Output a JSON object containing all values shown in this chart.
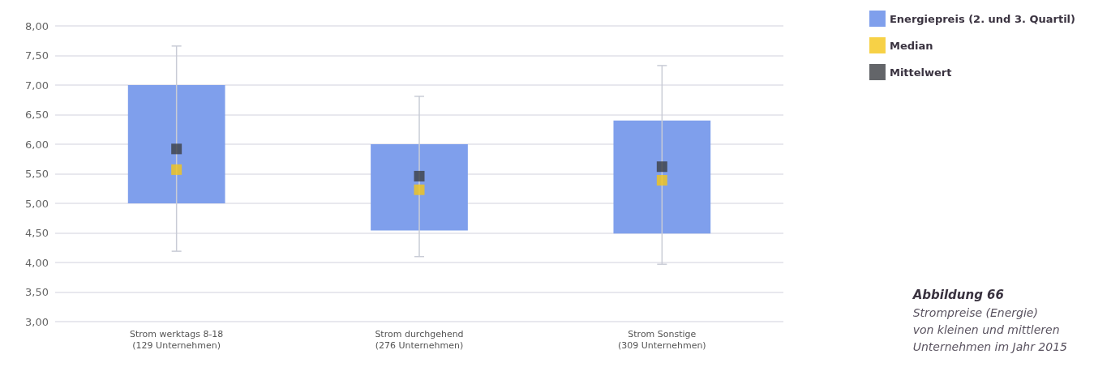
{
  "chart_data": {
    "type": "box",
    "title": "Abbildung 66",
    "subtitle": "Strompreise (Energie)\nvon kleinen und mittleren\nUnternehmen im Jahr 2015",
    "categories": [
      "Strom werktags 8-18\n(129 Unternehmen)",
      "Strom durchgehend\n(276 Unternehmen)",
      "Strom Sonstige\n(309 Unternehmen)"
    ],
    "series": [
      {
        "name": "Energiepreis (2. und 3. Quartil)",
        "color": "#7f9fec",
        "boxes": [
          {
            "low": 4.19,
            "q1": 5.0,
            "q3": 7.0,
            "high": 7.66
          },
          {
            "low": 4.1,
            "q1": 4.54,
            "q3": 6.0,
            "high": 6.81
          },
          {
            "low": 3.97,
            "q1": 4.49,
            "q3": 6.4,
            "high": 7.33
          }
        ]
      },
      {
        "name": "Median",
        "color": "#f5c518",
        "type": "scatter",
        "values": [
          5.57,
          5.23,
          5.39
        ]
      },
      {
        "name": "Mittelwert",
        "color": "#3c3f44",
        "type": "scatter",
        "values": [
          5.92,
          5.46,
          5.62
        ]
      }
    ],
    "ylim": [
      3,
      8
    ],
    "yticks": [
      {
        "value": 3,
        "label": "3,00"
      },
      {
        "value": 3.5,
        "label": "3,50"
      },
      {
        "value": 4,
        "label": "4,00"
      },
      {
        "value": 4.5,
        "label": "4,50"
      },
      {
        "value": 5,
        "label": "5,00"
      },
      {
        "value": 5.5,
        "label": "5,50"
      },
      {
        "value": 6,
        "label": "6,00"
      },
      {
        "value": 6.5,
        "label": "6,50"
      },
      {
        "value": 7,
        "label": "7,00"
      },
      {
        "value": 7.5,
        "label": "7,50"
      },
      {
        "value": 8,
        "label": "8,00"
      }
    ],
    "grid": "y",
    "legend": "top right",
    "marker": "square"
  }
}
